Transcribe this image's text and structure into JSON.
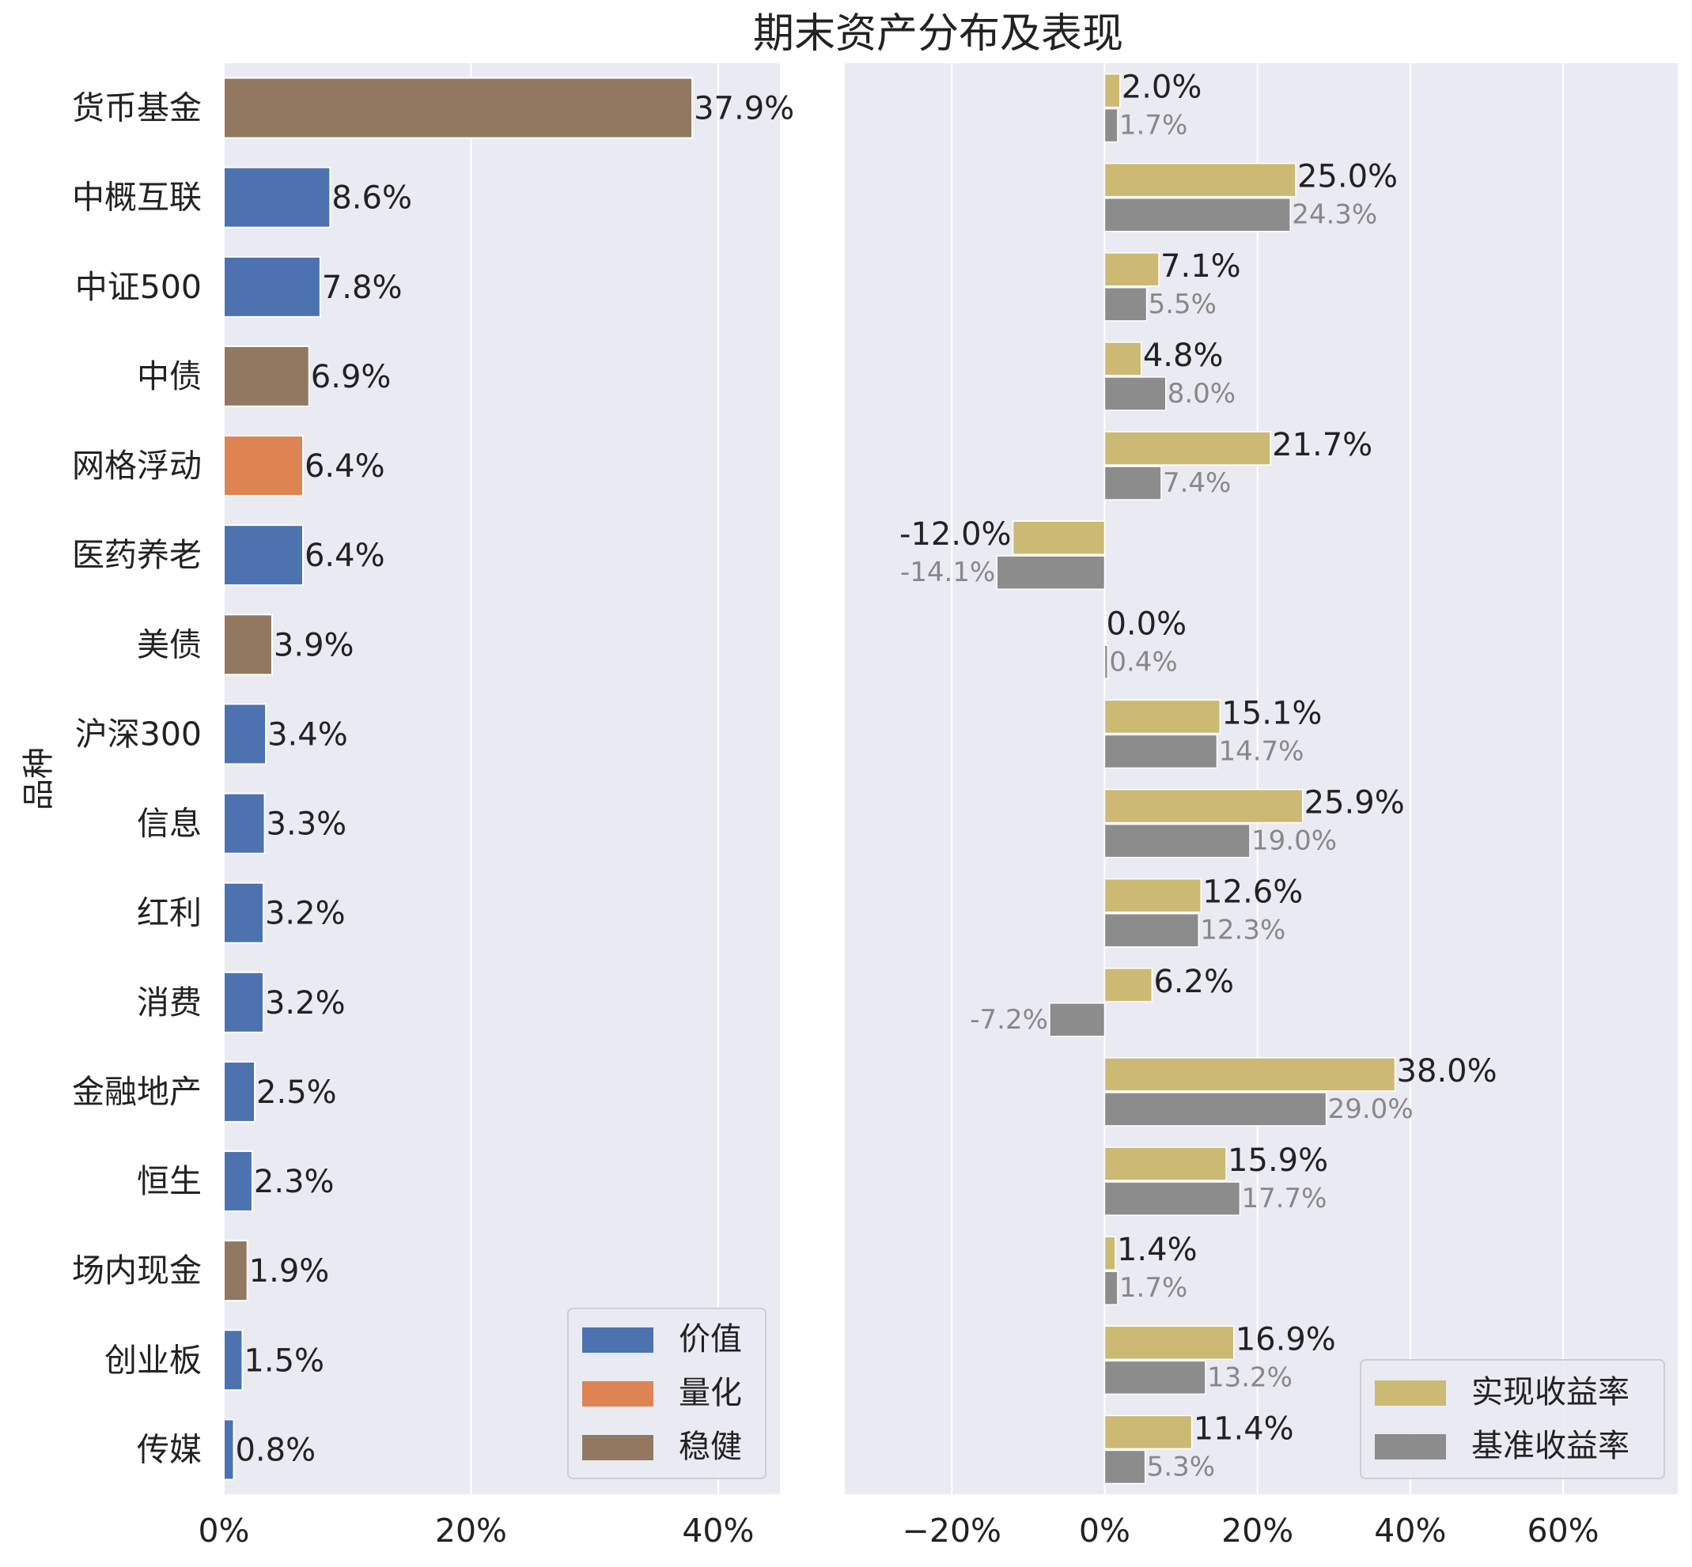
{
  "title": "期末资产分布及表现",
  "colors": {
    "价值": "#4c72b0",
    "量化": "#dd8452",
    "稳健": "#937860",
    "realized": "#ccb974",
    "benchmark": "#8c8c8c",
    "panel_bg": "#eaeaf2"
  },
  "chart_data": [
    {
      "type": "bar",
      "orientation": "horizontal",
      "ylabel": "品种",
      "categories": [
        "货币基金",
        "中概互联",
        "中证500",
        "中债",
        "网格浮动",
        "医药养老",
        "美债",
        "沪深300",
        "信息",
        "红利",
        "消费",
        "金融地产",
        "恒生",
        "场内现金",
        "创业板",
        "传媒"
      ],
      "values": [
        37.9,
        8.6,
        7.8,
        6.9,
        6.4,
        6.4,
        3.9,
        3.4,
        3.3,
        3.2,
        3.2,
        2.5,
        2.3,
        1.9,
        1.5,
        0.8
      ],
      "value_labels": [
        "37.9%",
        "8.6%",
        "7.8%",
        "6.9%",
        "6.4%",
        "6.4%",
        "3.9%",
        "3.4%",
        "3.3%",
        "3.2%",
        "3.2%",
        "2.5%",
        "2.3%",
        "1.9%",
        "1.5%",
        "0.8%"
      ],
      "groups": [
        "稳健",
        "价值",
        "价值",
        "稳健",
        "量化",
        "价值",
        "稳健",
        "价值",
        "价值",
        "价值",
        "价值",
        "价值",
        "价值",
        "稳健",
        "价值",
        "价值"
      ],
      "xlim": [
        0,
        45
      ],
      "xticks": [
        0,
        20,
        40
      ],
      "xtick_labels": [
        "0%",
        "20%",
        "40%"
      ],
      "grid": true,
      "legend": {
        "placement": "bottom-right",
        "entries": [
          "价值",
          "量化",
          "稳健"
        ]
      }
    },
    {
      "type": "bar",
      "orientation": "horizontal",
      "categories": [
        "货币基金",
        "中概互联",
        "中证500",
        "中债",
        "网格浮动",
        "医药养老",
        "美债",
        "沪深300",
        "信息",
        "红利",
        "消费",
        "金融地产",
        "恒生",
        "场内现金",
        "创业板",
        "传媒"
      ],
      "series": [
        {
          "name": "实现收益率",
          "values": [
            2.0,
            25.0,
            7.1,
            4.8,
            21.7,
            -12.0,
            0.0,
            15.1,
            25.9,
            12.6,
            6.2,
            38.0,
            15.9,
            1.4,
            16.9,
            11.4
          ],
          "value_labels": [
            "2.0%",
            "25.0%",
            "7.1%",
            "4.8%",
            "21.7%",
            "-12.0%",
            "0.0%",
            "15.1%",
            "25.9%",
            "12.6%",
            "6.2%",
            "38.0%",
            "15.9%",
            "1.4%",
            "16.9%",
            "11.4%"
          ]
        },
        {
          "name": "基准收益率",
          "values": [
            1.7,
            24.3,
            5.5,
            8.0,
            7.4,
            -14.1,
            0.4,
            14.7,
            19.0,
            12.3,
            -7.2,
            29.0,
            17.7,
            1.7,
            13.2,
            5.3
          ],
          "value_labels": [
            "1.7%",
            "24.3%",
            "5.5%",
            "8.0%",
            "7.4%",
            "-14.1%",
            "0.4%",
            "14.7%",
            "19.0%",
            "12.3%",
            "-7.2%",
            "29.0%",
            "17.7%",
            "1.7%",
            "13.2%",
            "5.3%"
          ]
        }
      ],
      "xlim": [
        -34,
        75
      ],
      "xticks": [
        -20,
        0,
        20,
        40,
        60
      ],
      "xtick_labels": [
        "−20%",
        "0%",
        "20%",
        "40%",
        "60%"
      ],
      "grid": true,
      "legend": {
        "placement": "bottom-right",
        "entries": [
          "实现收益率",
          "基准收益率"
        ]
      }
    }
  ]
}
